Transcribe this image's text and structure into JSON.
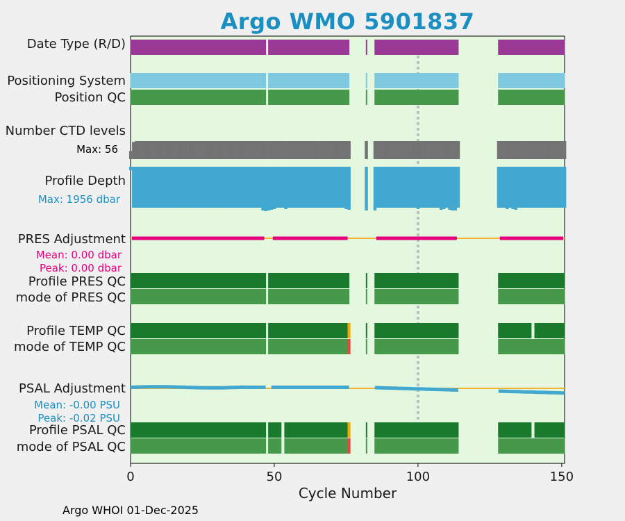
{
  "chart_data": {
    "type": "table",
    "title": "Argo WMO 5901837",
    "xlabel": "Cycle Number",
    "xlim": [
      0,
      151
    ],
    "xticks": [
      0,
      50,
      100,
      150
    ],
    "grid_line_cycle": 100,
    "cycle_segments": [
      [
        0,
        47
      ],
      [
        48,
        76
      ],
      [
        82,
        82
      ],
      [
        85,
        114
      ],
      [
        128,
        151
      ]
    ],
    "rows": [
      {
        "key": "date_type",
        "label": "Date Type (R/D)",
        "color": "#9b3a96"
      },
      {
        "key": "positioning",
        "label": "Positioning System",
        "color": "#7ec8e0"
      },
      {
        "key": "position_qc",
        "label": "Position QC",
        "color": "#46994a"
      },
      {
        "key": "ctd_levels",
        "label": "Number CTD levels",
        "annotation": "Max: 56",
        "max": 56,
        "color": "#737373"
      },
      {
        "key": "profile_depth",
        "label": "Profile Depth",
        "annotation": "Max: 1956 dbar",
        "max": 1956,
        "unit": "dbar",
        "color": "#42a8d0"
      },
      {
        "key": "pres_adjustment",
        "label": "PRES Adjustment",
        "mean_label": "Mean: 0.00 dbar",
        "peak_label": "Peak: 0.00 dbar",
        "mean": 0.0,
        "peak": 0.0,
        "color": "#e6007e"
      },
      {
        "key": "profile_pres_qc",
        "label": "Profile PRES QC",
        "color": "#197a2d"
      },
      {
        "key": "mode_pres_qc",
        "label": "mode of PRES QC",
        "color": "#46994a"
      },
      {
        "key": "profile_temp_qc",
        "label": "Profile TEMP QC",
        "color": "#197a2d",
        "flag_cycles": [
          {
            "cycle": 76,
            "color": "#f5a800"
          }
        ]
      },
      {
        "key": "mode_temp_qc",
        "label": "mode of TEMP QC",
        "color": "#46994a",
        "flag_cycles": [
          {
            "cycle": 76,
            "color": "#e2463c"
          }
        ]
      },
      {
        "key": "psal_adjustment",
        "label": "PSAL Adjustment",
        "mean_label": "Mean: -0.00 PSU",
        "peak_label": "Peak: -0.02 PSU",
        "mean": -0.0,
        "peak": -0.02,
        "unit": "PSU",
        "color": "#42a8d0"
      },
      {
        "key": "profile_psal_qc",
        "label": "Profile PSAL QC",
        "color": "#197a2d",
        "flag_cycles": [
          {
            "cycle": 76,
            "color": "#f5a800"
          }
        ]
      },
      {
        "key": "mode_psal_qc",
        "label": "mode of PSAL QC",
        "color": "#46994a",
        "flag_cycles": [
          {
            "cycle": 76,
            "color": "#e2463c"
          }
        ]
      }
    ],
    "missing_cycles": {
      "profile_temp_qc": [
        140
      ],
      "profile_psal_qc": [
        53,
        140
      ],
      "mode_psal_qc": [
        53
      ]
    },
    "zero_line_color": "#f2b431",
    "plot_background": "#e4f7df"
  },
  "footer": "Argo WHOI 01-Dec-2025"
}
